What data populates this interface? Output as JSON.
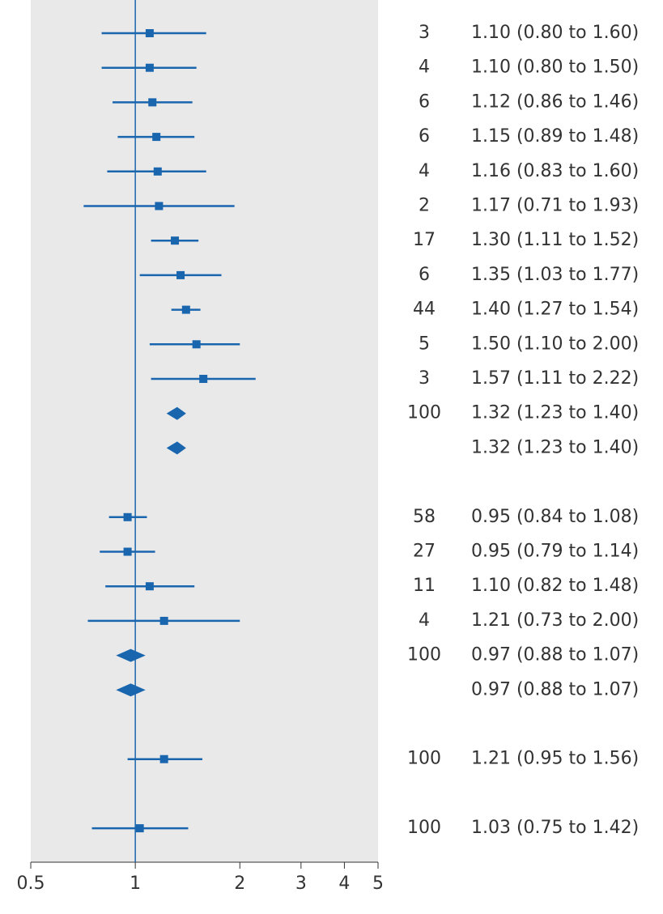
{
  "chart_data": {
    "type": "forest",
    "color": "#1a66ae",
    "log_scale": true,
    "ref_line": 1,
    "xlim": [
      0.5,
      5
    ],
    "xticks": [
      0.5,
      1,
      2,
      3,
      4,
      5
    ],
    "rows": [
      {
        "weight": 3,
        "value": 1.1,
        "lower": 0.8,
        "upper": 1.6,
        "value_label": "1.10 (0.80 to 1.60)",
        "marker": "square"
      },
      {
        "weight": 4,
        "value": 1.1,
        "lower": 0.8,
        "upper": 1.5,
        "value_label": "1.10 (0.80 to 1.50)",
        "marker": "square"
      },
      {
        "weight": 6,
        "value": 1.12,
        "lower": 0.86,
        "upper": 1.46,
        "value_label": "1.12 (0.86 to 1.46)",
        "marker": "square"
      },
      {
        "weight": 6,
        "value": 1.15,
        "lower": 0.89,
        "upper": 1.48,
        "value_label": "1.15 (0.89 to 1.48)",
        "marker": "square"
      },
      {
        "weight": 4,
        "value": 1.16,
        "lower": 0.83,
        "upper": 1.6,
        "value_label": "1.16 (0.83 to 1.60)",
        "marker": "square"
      },
      {
        "weight": 2,
        "value": 1.17,
        "lower": 0.71,
        "upper": 1.93,
        "value_label": "1.17 (0.71 to 1.93)",
        "marker": "square"
      },
      {
        "weight": 17,
        "value": 1.3,
        "lower": 1.11,
        "upper": 1.52,
        "value_label": "1.30 (1.11 to 1.52)",
        "marker": "square"
      },
      {
        "weight": 6,
        "value": 1.35,
        "lower": 1.03,
        "upper": 1.77,
        "value_label": "1.35 (1.03 to 1.77)",
        "marker": "square"
      },
      {
        "weight": 44,
        "value": 1.4,
        "lower": 1.27,
        "upper": 1.54,
        "value_label": "1.40 (1.27 to 1.54)",
        "marker": "square"
      },
      {
        "weight": 5,
        "value": 1.5,
        "lower": 1.1,
        "upper": 2.0,
        "value_label": "1.50 (1.10 to 2.00)",
        "marker": "square"
      },
      {
        "weight": 3,
        "value": 1.57,
        "lower": 1.11,
        "upper": 2.22,
        "value_label": "1.57 (1.11 to 2.22)",
        "marker": "square"
      },
      {
        "weight": 100,
        "value": 1.32,
        "lower": 1.23,
        "upper": 1.4,
        "value_label": "1.32 (1.23 to 1.40)",
        "marker": "diamond"
      },
      {
        "weight": null,
        "value": 1.32,
        "lower": 1.23,
        "upper": 1.4,
        "value_label": "1.32 (1.23 to 1.40)",
        "marker": "diamond"
      },
      {
        "weight": 58,
        "value": 0.95,
        "lower": 0.84,
        "upper": 1.08,
        "value_label": "0.95 (0.84 to 1.08)",
        "marker": "square"
      },
      {
        "weight": 27,
        "value": 0.95,
        "lower": 0.79,
        "upper": 1.14,
        "value_label": "0.95 (0.79 to 1.14)",
        "marker": "square"
      },
      {
        "weight": 11,
        "value": 1.1,
        "lower": 0.82,
        "upper": 1.48,
        "value_label": "1.10 (0.82 to 1.48)",
        "marker": "square"
      },
      {
        "weight": 4,
        "value": 1.21,
        "lower": 0.73,
        "upper": 2.0,
        "value_label": "1.21 (0.73 to 2.00)",
        "marker": "square"
      },
      {
        "weight": 100,
        "value": 0.97,
        "lower": 0.88,
        "upper": 1.07,
        "value_label": "0.97 (0.88 to 1.07)",
        "marker": "diamond"
      },
      {
        "weight": null,
        "value": 0.97,
        "lower": 0.88,
        "upper": 1.07,
        "value_label": "0.97 (0.88 to 1.07)",
        "marker": "diamond"
      },
      {
        "weight": 100,
        "value": 1.21,
        "lower": 0.95,
        "upper": 1.56,
        "value_label": "1.21 (0.95 to 1.56)",
        "marker": "square"
      },
      {
        "weight": 100,
        "value": 1.03,
        "lower": 0.75,
        "upper": 1.42,
        "value_label": "1.03 (0.75 to 1.42)",
        "marker": "square"
      }
    ]
  }
}
